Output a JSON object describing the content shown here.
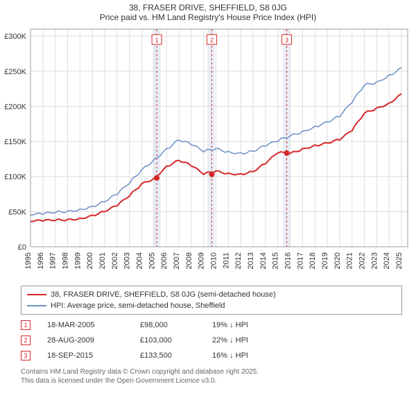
{
  "title": "38, FRASER DRIVE, SHEFFIELD, S8 0JG",
  "subtitle": "Price paid vs. HM Land Registry's House Price Index (HPI)",
  "chart": {
    "type": "line",
    "background_color": "#ffffff",
    "grid_color": "#dddddd",
    "plot_border_color": "#9e9e9e",
    "ylabel_prefix": "£",
    "ylim": [
      0,
      310000
    ],
    "ytick_step": 50000,
    "yticks": [
      "£0",
      "£50K",
      "£100K",
      "£150K",
      "£200K",
      "£250K",
      "£300K"
    ],
    "x_years": [
      "1995",
      "1996",
      "1997",
      "1998",
      "1999",
      "2000",
      "2001",
      "2002",
      "2003",
      "2004",
      "2005",
      "2006",
      "2007",
      "2008",
      "2009",
      "2010",
      "2011",
      "2012",
      "2013",
      "2014",
      "2015",
      "2016",
      "2017",
      "2018",
      "2019",
      "2020",
      "2021",
      "2022",
      "2023",
      "2024",
      "2025"
    ],
    "shaded_bands": [
      {
        "from_year": 2004.9,
        "to_year": 2005.5,
        "fill": "#e8edf6"
      },
      {
        "from_year": 2009.3,
        "to_year": 2009.9,
        "fill": "#e8edf6"
      },
      {
        "from_year": 2015.4,
        "to_year": 2016.0,
        "fill": "#e8edf6"
      }
    ],
    "marker_lines": [
      {
        "n": "1",
        "year": 2005.21,
        "color": "#d62728",
        "dash": "3,3"
      },
      {
        "n": "2",
        "year": 2009.66,
        "color": "#d62728",
        "dash": "3,3"
      },
      {
        "n": "3",
        "year": 2015.72,
        "color": "#d62728",
        "dash": "3,3"
      }
    ],
    "series": [
      {
        "name": "38, FRASER DRIVE, SHEFFIELD, S8 0JG (semi-detached house)",
        "color": "#d62728",
        "line_width": 2,
        "points": [
          [
            1995,
            36000
          ],
          [
            1996,
            36500
          ],
          [
            1997,
            37500
          ],
          [
            1998,
            39000
          ],
          [
            1999,
            41000
          ],
          [
            2000,
            45000
          ],
          [
            2001,
            50000
          ],
          [
            2002,
            58000
          ],
          [
            2003,
            72000
          ],
          [
            2004,
            90000
          ],
          [
            2005,
            98000
          ],
          [
            2006,
            115000
          ],
          [
            2007,
            123000
          ],
          [
            2008,
            115000
          ],
          [
            2009,
            103000
          ],
          [
            2010,
            108000
          ],
          [
            2011,
            105000
          ],
          [
            2012,
            104000
          ],
          [
            2013,
            107000
          ],
          [
            2014,
            118000
          ],
          [
            2015,
            133500
          ],
          [
            2016,
            133000
          ],
          [
            2017,
            140000
          ],
          [
            2018,
            145000
          ],
          [
            2019,
            148000
          ],
          [
            2020,
            152000
          ],
          [
            2021,
            165000
          ],
          [
            2022,
            190000
          ],
          [
            2023,
            198000
          ],
          [
            2024,
            205000
          ],
          [
            2025,
            218000
          ]
        ],
        "sale_markers": [
          {
            "year": 2005.21,
            "price": 98000
          },
          {
            "year": 2009.66,
            "price": 103000
          },
          {
            "year": 2015.72,
            "price": 133500
          }
        ]
      },
      {
        "name": "HPI: Average price, semi-detached house, Sheffield",
        "color": "#6b8fc7",
        "line_width": 1.5,
        "points": [
          [
            1995,
            45000
          ],
          [
            1996,
            46000
          ],
          [
            1997,
            48500
          ],
          [
            1998,
            51000
          ],
          [
            1999,
            54000
          ],
          [
            2000,
            58000
          ],
          [
            2001,
            64000
          ],
          [
            2002,
            74000
          ],
          [
            2003,
            90000
          ],
          [
            2004,
            110000
          ],
          [
            2005,
            125000
          ],
          [
            2006,
            140000
          ],
          [
            2007,
            152000
          ],
          [
            2008,
            145000
          ],
          [
            2009,
            135000
          ],
          [
            2010,
            140000
          ],
          [
            2011,
            136000
          ],
          [
            2012,
            134000
          ],
          [
            2013,
            136000
          ],
          [
            2014,
            143000
          ],
          [
            2015,
            150000
          ],
          [
            2016,
            158000
          ],
          [
            2017,
            165000
          ],
          [
            2018,
            172000
          ],
          [
            2019,
            178000
          ],
          [
            2020,
            185000
          ],
          [
            2021,
            205000
          ],
          [
            2022,
            230000
          ],
          [
            2023,
            235000
          ],
          [
            2024,
            245000
          ],
          [
            2025,
            255000
          ]
        ]
      }
    ]
  },
  "legend": {
    "items": [
      {
        "color": "#d62728",
        "label": "38, FRASER DRIVE, SHEFFIELD, S8 0JG (semi-detached house)"
      },
      {
        "color": "#6b8fc7",
        "label": "HPI: Average price, semi-detached house, Sheffield"
      }
    ]
  },
  "transactions": [
    {
      "n": "1",
      "date": "18-MAR-2005",
      "price": "£98,000",
      "delta": "19% ↓ HPI",
      "box_color": "#d62728"
    },
    {
      "n": "2",
      "date": "28-AUG-2009",
      "price": "£103,000",
      "delta": "22% ↓ HPI",
      "box_color": "#d62728"
    },
    {
      "n": "3",
      "date": "18-SEP-2015",
      "price": "£133,500",
      "delta": "16% ↓ HPI",
      "box_color": "#d62728"
    }
  ],
  "footer": {
    "line1": "Contains HM Land Registry data © Crown copyright and database right 2025.",
    "line2": "This data is licensed under the Open Government Licence v3.0."
  }
}
